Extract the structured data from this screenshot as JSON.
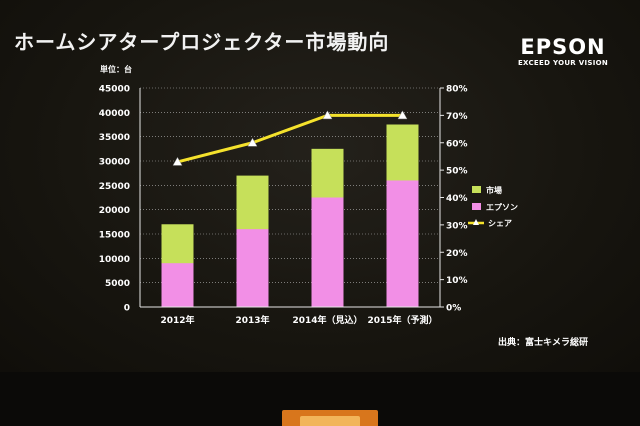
{
  "slide": {
    "title": "ホームシアタープロジェクター市場動向",
    "brand_name": "EPSON",
    "brand_tagline": "EXCEED YOUR VISION",
    "source": "出典：富士キメラ総研"
  },
  "colors": {
    "market": "#c6e05a",
    "epson": "#f28fe6",
    "share": "#f5e22c",
    "share_marker": "#ffffff",
    "grid": "#b8b8b8"
  },
  "chart_data": {
    "type": "bar",
    "stacked": true,
    "unit_label": "単位：台",
    "categories": [
      "2012年",
      "2013年",
      "2014年（見込）",
      "2015年（予測）"
    ],
    "series": [
      {
        "name": "市場",
        "type": "bar",
        "values": [
          17000,
          27000,
          32500,
          37500
        ],
        "color": "#c6e05a"
      },
      {
        "name": "エプソン",
        "type": "bar",
        "values": [
          9000,
          16000,
          22500,
          26000
        ],
        "color": "#f28fe6"
      },
      {
        "name": "シェア",
        "type": "line",
        "axis": "right",
        "values": [
          53,
          60,
          70,
          70
        ],
        "color": "#f5e22c"
      }
    ],
    "ylim": [
      0,
      45000
    ],
    "yticks": [
      0,
      5000,
      10000,
      15000,
      20000,
      25000,
      30000,
      35000,
      40000,
      45000
    ],
    "y2lim": [
      0,
      80
    ],
    "y2ticks": [
      "0%",
      "10%",
      "20%",
      "30%",
      "40%",
      "50%",
      "60%",
      "70%",
      "80%"
    ],
    "grid": true,
    "legend": "right"
  }
}
